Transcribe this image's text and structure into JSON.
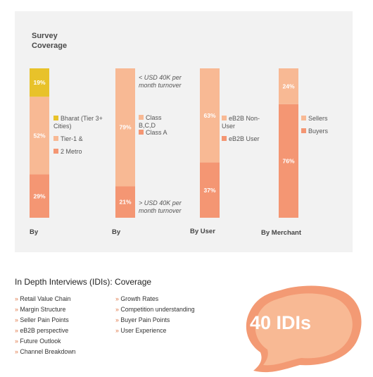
{
  "colors": {
    "yellow": "#e8c22a",
    "light": "#f8b994",
    "dark": "#f49673",
    "panel": "#f2f2f2",
    "accent": "#e07a4a"
  },
  "survey_title": "Survey\nCoverage",
  "chart_data": [
    {
      "type": "bar",
      "stacked": true,
      "xlabel": "By",
      "ylim": [
        0,
        100
      ],
      "series": [
        {
          "name": "2 Metro",
          "value": 29,
          "label": "29%",
          "color": "#f49673"
        },
        {
          "name": "Tier-1 &",
          "value": 52,
          "label": "52%",
          "color": "#f8b994"
        },
        {
          "name": "Bharat (Tier 3+ Cities)",
          "value": 19,
          "label": "19%",
          "color": "#e8c22a"
        }
      ]
    },
    {
      "type": "bar",
      "stacked": true,
      "xlabel": "By",
      "ylim": [
        0,
        100
      ],
      "series": [
        {
          "name": "Class A",
          "value": 21,
          "label": "21%",
          "color": "#f49673"
        },
        {
          "name": "Class B,C,D",
          "value": 79,
          "label": "79%",
          "color": "#f8b994"
        }
      ]
    },
    {
      "type": "bar",
      "stacked": true,
      "xlabel": "By User",
      "ylim": [
        0,
        100
      ],
      "series": [
        {
          "name": "eB2B User",
          "value": 37,
          "label": "37%",
          "color": "#f49673"
        },
        {
          "name": "eB2B Non-User",
          "value": 63,
          "label": "63%",
          "color": "#f8b994"
        }
      ]
    },
    {
      "type": "bar",
      "stacked": true,
      "xlabel": "By Merchant",
      "ylim": [
        0,
        100
      ],
      "series": [
        {
          "name": "Buyers",
          "value": 76,
          "label": "76%",
          "color": "#f49673"
        },
        {
          "name": "Sellers",
          "value": 24,
          "label": "24%",
          "color": "#f8b994"
        }
      ]
    }
  ],
  "legends": {
    "c1": {
      "bharat": "Bharat (Tier 3+ Cities)",
      "tier1": "Tier-1 &",
      "metro": "2 Metro"
    },
    "c2": {
      "bcd": "Class B,C,D",
      "a": "Class A"
    },
    "c3": {
      "nonuser": "eB2B Non-User",
      "user": "eB2B User"
    },
    "c4": {
      "sellers": "Sellers",
      "buyers": "Buyers"
    }
  },
  "notes": {
    "upper": "< USD 40K per month turnover",
    "lower": "> USD 40K per month turnover"
  },
  "categories": [
    "By",
    "By",
    "By User",
    "By Merchant"
  ],
  "idi": {
    "title": "In Depth Interviews (IDIs): Coverage",
    "left": [
      "Retail Value Chain",
      "Margin Structure",
      "Seller Pain Points",
      "eB2B perspective",
      "Future Outlook",
      "Channel Breakdown"
    ],
    "right": [
      "Growth Rates",
      "Competition understanding",
      "Buyer Pain Points",
      "User Experience"
    ],
    "badge": "40 IDIs"
  }
}
